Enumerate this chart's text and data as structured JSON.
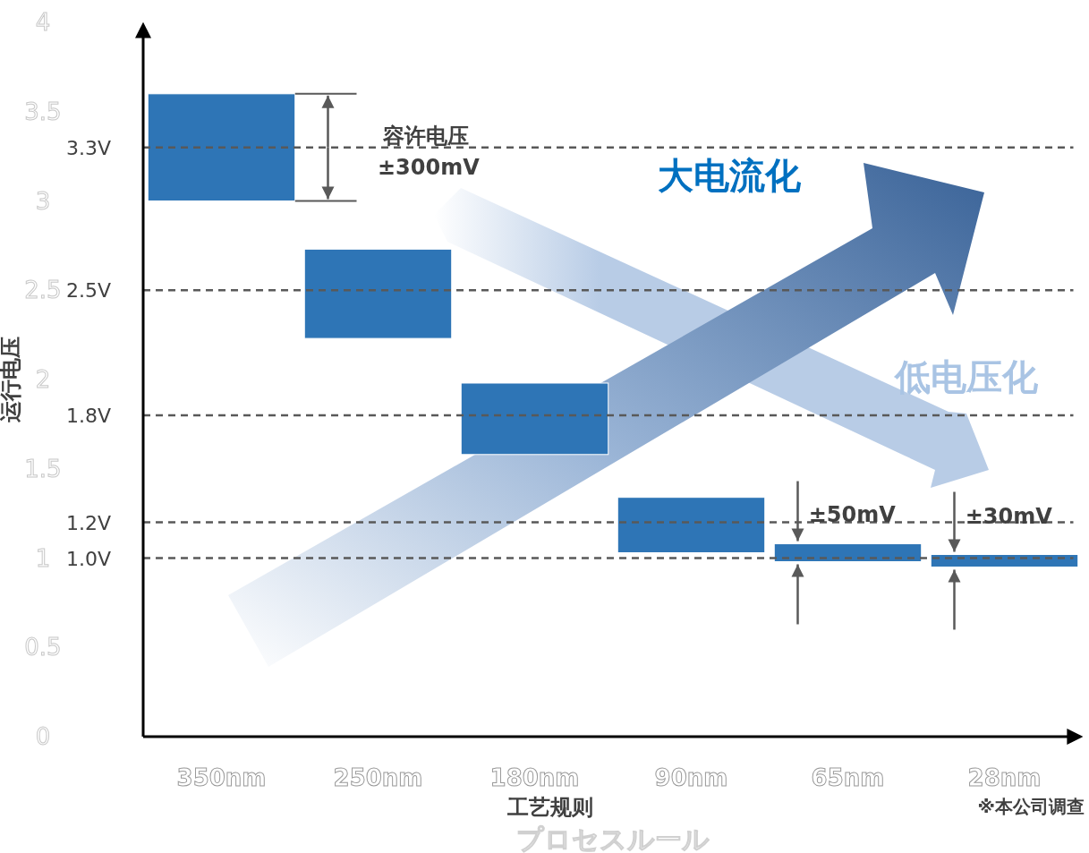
{
  "chart_data": {
    "type": "bar",
    "ylabel": "运行电压",
    "xlabel": "工艺规则",
    "categories": [
      "350nm",
      "250nm",
      "180nm",
      "90nm",
      "65nm",
      "28nm"
    ],
    "base": [
      3.0,
      2.23,
      1.58,
      1.03,
      0.98,
      0.95
    ],
    "color": "#2e75b6",
    "values": [
      0.6,
      0.5,
      0.4,
      0.31,
      0.1,
      0.07
    ],
    "ylim": [
      0,
      4
    ],
    "yticks": [
      0,
      0.5,
      1,
      1.5,
      2,
      2.5,
      3,
      3.5,
      4
    ],
    "ref_lines": [
      {
        "axis": "y",
        "value": 3.3,
        "label": "3.3V",
        "line_style": "dashed",
        "color": "#595959"
      },
      {
        "axis": "y",
        "value": 2.5,
        "label": "2.5V",
        "line_style": "dashed",
        "color": "#595959"
      },
      {
        "axis": "y",
        "value": 1.8,
        "label": "1.8V",
        "line_style": "dashed",
        "color": "#595959"
      },
      {
        "axis": "y",
        "value": 1.2,
        "label": "1.2V",
        "line_style": "dashed",
        "color": "#595959"
      },
      {
        "axis": "y",
        "value": 1.0,
        "label": "1.0V",
        "line_style": "dashed",
        "color": "#595959"
      }
    ],
    "annotations": [
      "容许电压",
      "±300mV",
      "±50mV",
      "±30mV",
      "大电流化",
      "低电压化",
      "※本公司调查",
      "プロセスルール"
    ]
  }
}
